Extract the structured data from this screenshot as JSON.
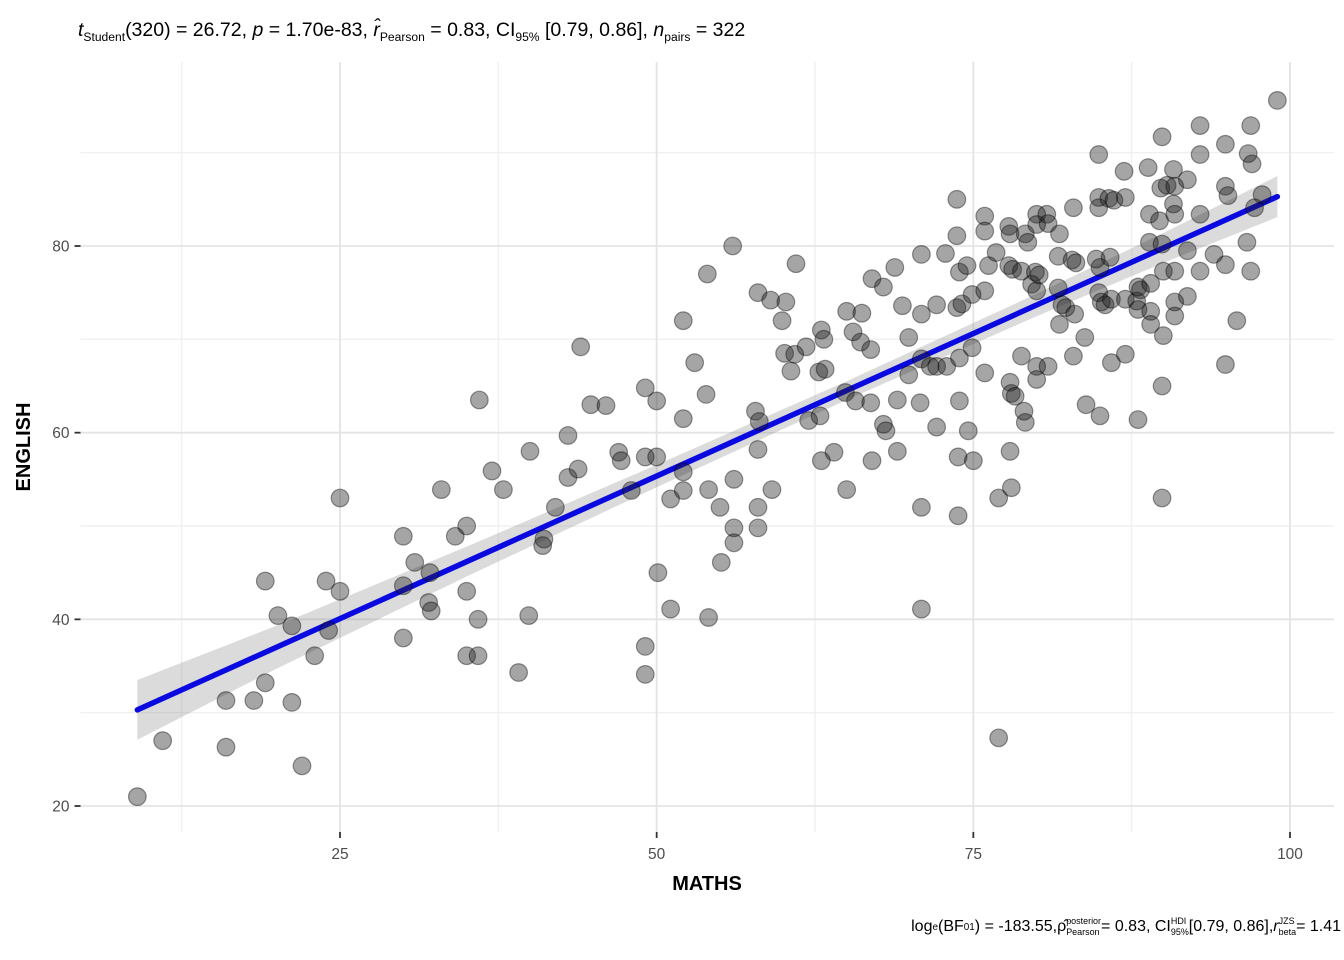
{
  "title": {
    "tokens": [
      {
        "t": "t",
        "i": true
      },
      {
        "sub": "Student"
      },
      {
        "t": "(320) = 26.72, "
      },
      {
        "t": "p",
        "i": true
      },
      {
        "t": " = 1.70e-83, "
      },
      {
        "t": "r̂",
        "i": true
      },
      {
        "sub": "Pearson"
      },
      {
        "t": " = 0.83, CI"
      },
      {
        "sub": "95%"
      },
      {
        "t": " [0.79, 0.86], "
      },
      {
        "t": "n",
        "i": true
      },
      {
        "sub": "pairs"
      },
      {
        "t": " = 322"
      }
    ]
  },
  "caption": {
    "tokens": [
      {
        "t": "log"
      },
      {
        "sub": "e"
      },
      {
        "t": "(BF"
      },
      {
        "sub": "01"
      },
      {
        "t": ") = -183.55, "
      },
      {
        "t": "ρ̂"
      },
      {
        "ss": [
          "posterior",
          "Pearson"
        ]
      },
      {
        "t": " = 0.83, CI"
      },
      {
        "ss": [
          "HDI",
          "95%"
        ]
      },
      {
        "t": " [0.79, 0.86], "
      },
      {
        "t": "r",
        "i": true
      },
      {
        "ss": [
          "JZS",
          "beta"
        ]
      },
      {
        "t": " = 1.41"
      }
    ]
  },
  "chart_data": {
    "type": "scatter",
    "title": "t_Student(320) = 26.72, p = 1.70e-83, r_Pearson = 0.83, CI_95% [0.79, 0.86], n_pairs = 322",
    "caption": "log_e(BF_01) = -183.55, rho_Pearson_posterior = 0.83, CI_95%_HDI [0.79, 0.86], r_beta_JZS = 1.41",
    "xlabel": "MATHS",
    "ylabel": "ENGLISH",
    "xlim": [
      4.5,
      103.5
    ],
    "ylim": [
      17.2,
      99.8
    ],
    "x_ticks": [
      25,
      50,
      75,
      100
    ],
    "y_ticks": [
      20,
      40,
      60,
      80
    ],
    "x_minor": [
      12.5,
      37.5,
      62.5,
      87.5
    ],
    "y_minor": [
      30,
      50,
      70,
      90
    ],
    "grid": true,
    "legend_position": "none",
    "colors": {
      "regression_line": "#0a0ae0",
      "ci_band": "#8f8f8f",
      "point_fill": "#1f1f1f",
      "point_stroke": "#000000",
      "grid_major": "#e4e4e4",
      "grid_minor": "#f0f0f0",
      "tick": "#333333",
      "tick_label": "#4d4d4d"
    },
    "regression_line": {
      "slope": 0.611,
      "intercept": 24.8,
      "x_start": 9,
      "x_end": 99
    },
    "ci_band": {
      "x": [
        9,
        20,
        35,
        50,
        65,
        80,
        90,
        99
      ],
      "half_width": [
        3.2,
        2.3,
        1.6,
        1.2,
        1.0,
        1.2,
        1.6,
        2.2
      ]
    },
    "point_style": {
      "radius": 8.8,
      "fill_opacity": 0.4,
      "stroke_opacity": 0.4,
      "stroke_width": 1.2
    },
    "points": [
      [
        9,
        21
      ],
      [
        11,
        27
      ],
      [
        36,
        63.5
      ],
      [
        43,
        59.7
      ],
      [
        44,
        69.2
      ],
      [
        16,
        31.3
      ],
      [
        18.2,
        31.3
      ],
      [
        16,
        26.3
      ],
      [
        19.1,
        33.2
      ],
      [
        22,
        24.3
      ],
      [
        21.2,
        31.1
      ],
      [
        19.1,
        44.1
      ],
      [
        20.1,
        40.4
      ],
      [
        21.2,
        39.3
      ],
      [
        23.9,
        44.1
      ],
      [
        24.1,
        38.8
      ],
      [
        23,
        36.1
      ],
      [
        25,
        53
      ],
      [
        25,
        43
      ],
      [
        30,
        48.9
      ],
      [
        30,
        43.6
      ],
      [
        30,
        38
      ],
      [
        30.9,
        46.1
      ],
      [
        32.1,
        45
      ],
      [
        32,
        41.8
      ],
      [
        32.2,
        40.9
      ],
      [
        33,
        53.9
      ],
      [
        34.1,
        48.9
      ],
      [
        35,
        50
      ],
      [
        35,
        43
      ],
      [
        35.9,
        40
      ],
      [
        35,
        36.1
      ],
      [
        35.9,
        36.1
      ],
      [
        37,
        55.9
      ],
      [
        37.9,
        53.9
      ],
      [
        39.1,
        34.3
      ],
      [
        39.9,
        40.4
      ],
      [
        40,
        58
      ],
      [
        41.1,
        48.6
      ],
      [
        41,
        47.9
      ],
      [
        42,
        52
      ],
      [
        43,
        55.2
      ],
      [
        43.8,
        56.1
      ],
      [
        44.8,
        63
      ],
      [
        46,
        62.9
      ],
      [
        47,
        57.9
      ],
      [
        47.2,
        57
      ],
      [
        48,
        53.8
      ],
      [
        49.1,
        57.4
      ],
      [
        49.1,
        64.8
      ],
      [
        50,
        57.4
      ],
      [
        50,
        63.4
      ],
      [
        49.1,
        37.1
      ],
      [
        49.1,
        34.1
      ],
      [
        50.1,
        45
      ],
      [
        51.1,
        52.9
      ],
      [
        51.1,
        41.1
      ],
      [
        52.1,
        55.8
      ],
      [
        52.1,
        53.8
      ],
      [
        52.1,
        61.5
      ],
      [
        52.1,
        72
      ],
      [
        53,
        67.5
      ],
      [
        53.9,
        64.1
      ],
      [
        54.1,
        53.9
      ],
      [
        54.1,
        40.2
      ],
      [
        54,
        77
      ],
      [
        55,
        52
      ],
      [
        55.1,
        46.1
      ],
      [
        56.1,
        55
      ],
      [
        56.1,
        49.8
      ],
      [
        56.1,
        48.2
      ],
      [
        56,
        80
      ],
      [
        57.8,
        62.3
      ],
      [
        58.1,
        61.2
      ],
      [
        58,
        58.2
      ],
      [
        58,
        52
      ],
      [
        58,
        49.8
      ],
      [
        58,
        75
      ],
      [
        59.1,
        53.9
      ],
      [
        59,
        74.2
      ],
      [
        59.9,
        72
      ],
      [
        60.1,
        68.5
      ],
      [
        60.9,
        68.4
      ],
      [
        60.6,
        66.6
      ],
      [
        60.2,
        74
      ],
      [
        61,
        78.1
      ],
      [
        61.8,
        69.2
      ],
      [
        62,
        61.3
      ],
      [
        62.9,
        61.8
      ],
      [
        62.8,
        66.5
      ],
      [
        63.3,
        66.8
      ],
      [
        63,
        71
      ],
      [
        63.2,
        70
      ],
      [
        63,
        57
      ],
      [
        64,
        57.9
      ],
      [
        64.9,
        64.3
      ],
      [
        65,
        73
      ],
      [
        65,
        53.9
      ],
      [
        65.5,
        70.8
      ],
      [
        65.7,
        63.4
      ],
      [
        66.2,
        72.8
      ],
      [
        66.1,
        69.7
      ],
      [
        66.9,
        68.9
      ],
      [
        66.9,
        63.2
      ],
      [
        67,
        76.5
      ],
      [
        67,
        57
      ],
      [
        67.9,
        75.6
      ],
      [
        67.9,
        60.9
      ],
      [
        68.1,
        60.2
      ],
      [
        68.8,
        77.7
      ],
      [
        69,
        63.5
      ],
      [
        69,
        58
      ],
      [
        69.4,
        73.6
      ],
      [
        69.9,
        70.2
      ],
      [
        69.9,
        66.2
      ],
      [
        70.8,
        63.2
      ],
      [
        70.9,
        79.1
      ],
      [
        70.9,
        72.7
      ],
      [
        70.9,
        67.9
      ],
      [
        70.9,
        52
      ],
      [
        70.9,
        41.1
      ],
      [
        71.6,
        67.1
      ],
      [
        72.1,
        73.7
      ],
      [
        72.1,
        67.1
      ],
      [
        72.1,
        60.6
      ],
      [
        72.8,
        79.2
      ],
      [
        72.9,
        67.1
      ],
      [
        73.7,
        85
      ],
      [
        73.7,
        81.1
      ],
      [
        73.9,
        77.2
      ],
      [
        73.7,
        73.4
      ],
      [
        74.1,
        73.8
      ],
      [
        73.9,
        68
      ],
      [
        73.9,
        63.4
      ],
      [
        73.8,
        57.4
      ],
      [
        73.8,
        51.1
      ],
      [
        74.5,
        77.9
      ],
      [
        74.6,
        60.2
      ],
      [
        74.9,
        74.8
      ],
      [
        74.9,
        69.1
      ],
      [
        75,
        57
      ],
      [
        75.9,
        83.2
      ],
      [
        75.9,
        81.6
      ],
      [
        75.9,
        75.2
      ],
      [
        75.9,
        66.4
      ],
      [
        76.2,
        77.9
      ],
      [
        76.8,
        79.3
      ],
      [
        77,
        53
      ],
      [
        77,
        27.3
      ],
      [
        77.8,
        82.1
      ],
      [
        77.9,
        81.3
      ],
      [
        77.8,
        77.9
      ],
      [
        78.1,
        77.5
      ],
      [
        77.9,
        65.4
      ],
      [
        78,
        64.2
      ],
      [
        78.3,
        63.9
      ],
      [
        77.9,
        58
      ],
      [
        78,
        54.1
      ],
      [
        78.8,
        77.3
      ],
      [
        78.8,
        68.2
      ],
      [
        79.1,
        81.3
      ],
      [
        79.3,
        80.4
      ],
      [
        79.6,
        75.9
      ],
      [
        79.1,
        61.1
      ],
      [
        79,
        62.3
      ],
      [
        79.9,
        77.2
      ],
      [
        80,
        83.4
      ],
      [
        80,
        82.3
      ],
      [
        80,
        75.2
      ],
      [
        80,
        67.1
      ],
      [
        80,
        65.7
      ],
      [
        80.2,
        76.9
      ],
      [
        80.8,
        83.4
      ],
      [
        80.9,
        82.4
      ],
      [
        80.9,
        67.1
      ],
      [
        81.7,
        78.9
      ],
      [
        81.7,
        75.5
      ],
      [
        81.8,
        81.3
      ],
      [
        81.8,
        71.6
      ],
      [
        82,
        73.7
      ],
      [
        82.3,
        73.4
      ],
      [
        82.9,
        84.1
      ],
      [
        82.8,
        78.5
      ],
      [
        82.9,
        68.2
      ],
      [
        83.1,
        78.2
      ],
      [
        83,
        72.7
      ],
      [
        83.8,
        70.2
      ],
      [
        83.9,
        63
      ],
      [
        84.7,
        78.6
      ],
      [
        84.9,
        89.8
      ],
      [
        84.9,
        85.2
      ],
      [
        84.9,
        84.1
      ],
      [
        84.9,
        75
      ],
      [
        85.1,
        74
      ],
      [
        85,
        77.7
      ],
      [
        85,
        61.8
      ],
      [
        85.4,
        73.7
      ],
      [
        85.7,
        85.1
      ],
      [
        85.8,
        78.8
      ],
      [
        85.9,
        74.3
      ],
      [
        85.9,
        67.5
      ],
      [
        86.1,
        84.9
      ],
      [
        86.9,
        88
      ],
      [
        87,
        85.2
      ],
      [
        87,
        74.3
      ],
      [
        87,
        68.4
      ],
      [
        87.9,
        74.1
      ],
      [
        88,
        75.6
      ],
      [
        88,
        73.2
      ],
      [
        88,
        61.4
      ],
      [
        88.2,
        75.3
      ],
      [
        88.8,
        88.4
      ],
      [
        88.9,
        83.4
      ],
      [
        88.9,
        80.4
      ],
      [
        89,
        76
      ],
      [
        89,
        73
      ],
      [
        89,
        71.6
      ],
      [
        89.7,
        82.7
      ],
      [
        89.8,
        86.2
      ],
      [
        89.9,
        91.7
      ],
      [
        89.9,
        80.2
      ],
      [
        89.9,
        65
      ],
      [
        89.9,
        53
      ],
      [
        90,
        77.3
      ],
      [
        90,
        70.4
      ],
      [
        90.3,
        86.5
      ],
      [
        90.8,
        88.2
      ],
      [
        90.8,
        84.5
      ],
      [
        90.9,
        86.4
      ],
      [
        90.9,
        83.4
      ],
      [
        90.9,
        77.3
      ],
      [
        90.9,
        74
      ],
      [
        90.9,
        72.5
      ],
      [
        91.9,
        87.1
      ],
      [
        91.9,
        79.5
      ],
      [
        91.9,
        74.6
      ],
      [
        92.9,
        92.9
      ],
      [
        92.9,
        89.8
      ],
      [
        92.9,
        83.4
      ],
      [
        92.9,
        77.3
      ],
      [
        94,
        79.1
      ],
      [
        94.9,
        90.9
      ],
      [
        94.9,
        86.4
      ],
      [
        94.9,
        78
      ],
      [
        94.9,
        67.3
      ],
      [
        95.1,
        85.4
      ],
      [
        95.8,
        72
      ],
      [
        96.6,
        80.4
      ],
      [
        96.7,
        89.9
      ],
      [
        96.9,
        92.9
      ],
      [
        96.9,
        77.3
      ],
      [
        97,
        88.8
      ],
      [
        97.2,
        84.1
      ],
      [
        97.8,
        85.5
      ],
      [
        99,
        95.6
      ]
    ]
  },
  "axis": {
    "x_tick_labels": [
      "25",
      "50",
      "75",
      "100"
    ],
    "y_tick_labels": [
      "20",
      "40",
      "60",
      "80"
    ]
  }
}
